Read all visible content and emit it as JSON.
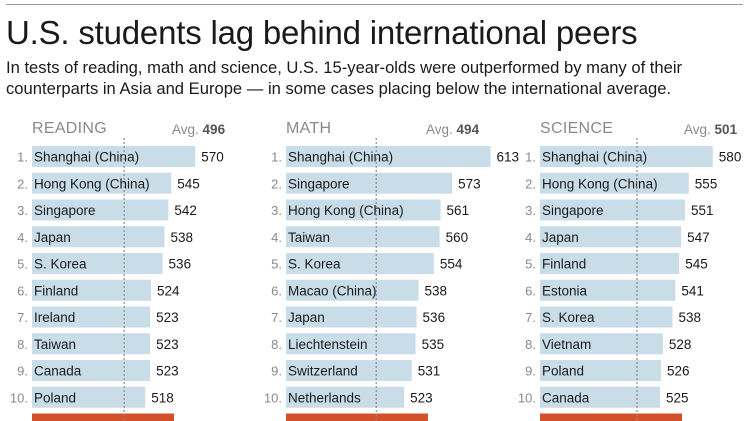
{
  "header": {
    "title": "U.S. students lag behind international peers",
    "subtitle_line1": "In tests of reading, math and science, U.S. 15-year-olds were outperformed by many of their",
    "subtitle_line2": "counterparts in Asia and Europe — in some cases placing below the international average."
  },
  "colors": {
    "bar": "#c9dde8",
    "us_bar": "#d2502a",
    "avg_line": "#8c8c8c",
    "rank": "#8a8a8a",
    "text": "#1a1a1a"
  },
  "chart_data": [
    {
      "type": "bar",
      "orientation": "horizontal",
      "title": "READING",
      "avg_label": "Avg.",
      "average": 496,
      "ranks": [
        "1.",
        "2.",
        "3.",
        "4.",
        "5.",
        "6.",
        "7.",
        "8.",
        "9.",
        "10."
      ],
      "categories": [
        "Shanghai (China)",
        "Hong Kong (China)",
        "Singapore",
        "Japan",
        "S. Korea",
        "Finland",
        "Ireland",
        "Taiwan",
        "Canada",
        "Poland"
      ],
      "values": [
        570,
        545,
        542,
        538,
        536,
        524,
        523,
        523,
        523,
        518
      ]
    },
    {
      "type": "bar",
      "orientation": "horizontal",
      "title": "MATH",
      "avg_label": "Avg.",
      "average": 494,
      "ranks": [
        "1.",
        "2.",
        "3.",
        "4.",
        "5.",
        "6.",
        "7.",
        "8.",
        "9.",
        "10."
      ],
      "categories": [
        "Shanghai (China)",
        "Singapore",
        "Hong Kong (China)",
        "Taiwan",
        "S. Korea",
        "Macao (China)",
        "Japan",
        "Liechtenstein",
        "Switzerland",
        "Netherlands"
      ],
      "values": [
        613,
        573,
        561,
        560,
        554,
        538,
        536,
        535,
        531,
        523
      ]
    },
    {
      "type": "bar",
      "orientation": "horizontal",
      "title": "SCIENCE",
      "avg_label": "Avg.",
      "average": 501,
      "ranks": [
        "1.",
        "2.",
        "3.",
        "4.",
        "5.",
        "6.",
        "7.",
        "8.",
        "9.",
        "10."
      ],
      "categories": [
        "Shanghai (China)",
        "Hong Kong (China)",
        "Singapore",
        "Japan",
        "Finland",
        "Estonia",
        "S. Korea",
        "Vietnam",
        "Poland",
        "Canada"
      ],
      "values": [
        580,
        555,
        551,
        547,
        545,
        541,
        538,
        528,
        526,
        525
      ]
    }
  ]
}
